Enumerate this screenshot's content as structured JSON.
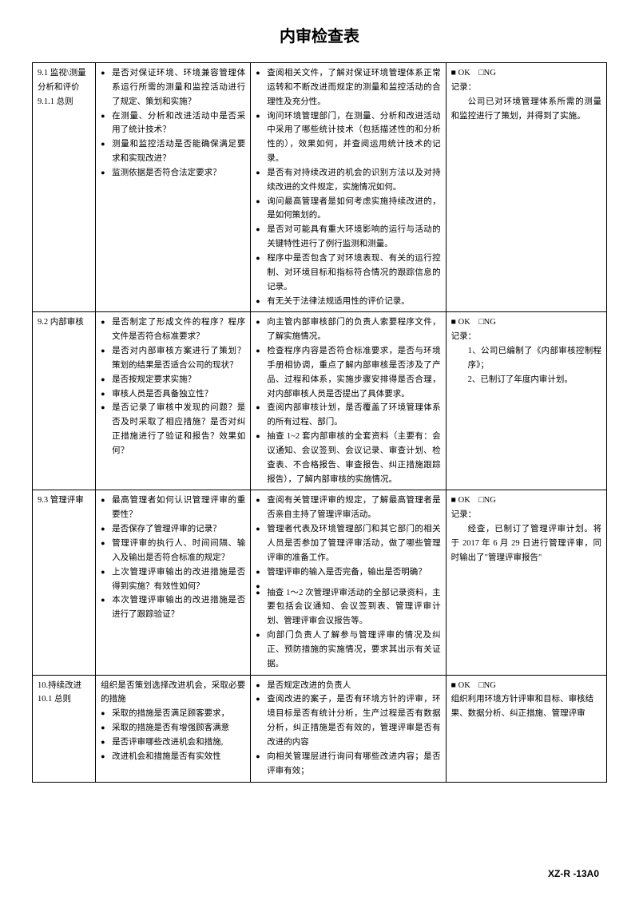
{
  "title": "内审检查表",
  "footer": "XZ-R -13A0",
  "check": {
    "ok": "■ OK",
    "ng": "□NG",
    "record_label": "记录："
  },
  "rows": [
    {
      "section_a": "9.1 监视\\测量分析和评价",
      "section_b": "9.1.1 总则",
      "col2": [
        "是否对保证环境、环境兼容管理体系运行所需的测量和监控活动进行了规定、策划和实施？",
        "在测量、分析和改进活动中是否采用了统计技术？",
        "测量和监控活动是否能确保满足要求和实现改进？",
        "监测依据是否符合法定要求？"
      ],
      "col3": [
        "查阅相关文件，了解对保证环境管理体系正常运转和不断改进而规定的测量和监控活动的合理性及充分性。",
        "询问环境管理部门，在测量、分析和改进活动中采用了哪些统计技术（包括描述性的和分析性的），效果如何，并查阅运用统计技术的记录。",
        "是否有对持续改进的机会的识别方法以及对持续改进的文件规定，实施情况如何。",
        "询问最高管理者是如何考虑实施持续改进的，是如何策划的。",
        "是否对可能具有重大环境影响的运行与活动的关键特性进行了例行监测和测量。",
        "程序中是否包含了对环境表现、有关的运行控制、对环境目标和指标符合情况的跟踪信息的记录。",
        "有无关于法律法规适用性的评价记录。"
      ],
      "col4_body": "公司已对环境管理体系所需的测量和监控进行了策划，并得到了实施。"
    },
    {
      "section_a": "9.2 内部审核",
      "col2": [
        "是否制定了形成文件的程序？程序文件是否符合标准要求？",
        "是否对内部审核方案进行了策划？策划的结果是否适合公司的现状？",
        "是否按规定要求实施？",
        "审核人员是否具备独立性？",
        "是否记录了审核中发现的问题？是否及时采取了相应措施？是否对纠正措施进行了验证和报告？效果如何？"
      ],
      "col3": [
        "向主管内部审核部门的负责人索要程序文件，了解实施情况。",
        "检查程序内容是否符合标准要求，是否与环境手册相协调，重点了解内部审核是否涉及了产品、过程和体系，实施步骤安排得是否合理，对内部审核人员是否提出了具体要求。",
        "查阅内部审核计划，是否覆盖了环境管理体系的所有过程、部门。",
        "抽查 1~2 套内部审核的全套资料（主要有：会议通知、会议签到、会议记录、审查计划、检查表、不合格报告、审查报告、纠正措施跟踪报告），了解内部审核的实施情况。"
      ],
      "col4_numbered": [
        "1、公司已编制了《内部审核控制程序》；",
        "2、已制订了年度内审计划。"
      ]
    },
    {
      "section_a": "9.3 管理评审",
      "col2": [
        "最高管理者如何认识管理评审的重要性？",
        "是否保存了管理评审的记录？",
        "管理评审的执行人、时间间隔、输入及输出是否符合标准的规定？",
        "上次管理评审输出的改进措施是否得到实施？有效性如何？",
        "本次管理评审输出的改进措施是否进行了跟踪验证？"
      ],
      "col3": [
        "查阅有关管理评审的规定，了解最高管理者是否亲自主持了管理评审活动。",
        "管理者代表及环境管理部门和其它部门的相关人员是否参加了管理评审活动，做了哪些管理评审的准备工作。",
        "管理评审的输入是否完备，输出是否明确？",
        "",
        "抽查 1～2 次管理评审活动的全部记录资料，主要包括会议通知、会议签到表、管理评审计划、管理评审会议报告等。",
        "向部门负责人了解参与管理评审的情况及纠正、预防措施的实施情况，要求其出示有关证据。"
      ],
      "col4_body": "经查，已制订了管理评审计划。将于 2017 年 6 月 29 日进行管理评审，同时输出了\"管理评审报告\""
    },
    {
      "section_a": "10.持续改进",
      "section_b": "10.1 总则",
      "col2_lead": "组织是否策划选择改进机会，采取必要的措施",
      "col2": [
        "采取的措施是否满足顾客要求，",
        "采取的措施是否有增强顾客满意",
        "是否评审哪些改进机会和措施,",
        "改进机会和措施是否有实效性"
      ],
      "col3": [
        "是否规定改进的负责人",
        "查阅改进的案子，是否有环境方针的评审，环境目标是否有统计分析，生产过程是否有数据分析，纠正措施是否有效的，管理评审是否有改进的内容",
        "向相关管理层进行询问有哪些改进内容；是否评审有效；"
      ],
      "col4_plain": "组织利用环境方针评审和目标、审核结果、数据分析、纠正措施、管理评审"
    }
  ]
}
